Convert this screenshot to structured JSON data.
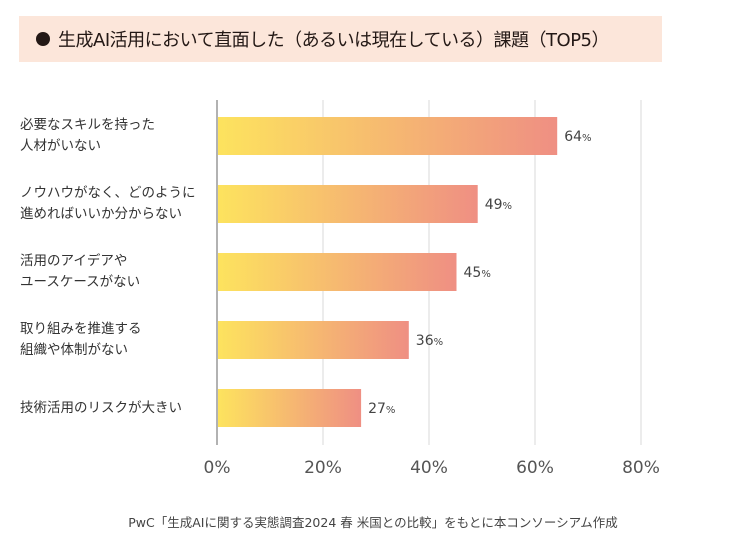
{
  "title": "生成AI活用において直面した（あるいは現在している）課題（TOP5）",
  "footer": "PwC「生成AIに関する実態調査2024 春 米国との比較」をもとに本コンソーシアム作成",
  "colors": {
    "title_bg": "#fce6da",
    "bar_start": "#fde35e",
    "bar_end": "#ef8f83",
    "grid": "#d9d9d9"
  },
  "chart_data": {
    "type": "bar",
    "orientation": "horizontal",
    "title": "生成AI活用において直面した（あるいは現在している）課題（TOP5）",
    "categories": [
      "必要なスキルを持った\n人材がいない",
      "ノウハウがなく、どのように\n進めればいいか分からない",
      "活用のアイデアや\nユースケースがない",
      "取り組みを推進する\n組織や体制がない",
      "技術活用のリスクが大きい"
    ],
    "values": [
      64,
      49,
      45,
      36,
      27
    ],
    "value_labels": [
      "64",
      "49",
      "45",
      "36",
      "27"
    ],
    "value_unit": "%",
    "xlim": [
      0,
      80
    ],
    "xticks": [
      "0%",
      "20%",
      "40%",
      "60%",
      "80%"
    ],
    "grid": true
  }
}
